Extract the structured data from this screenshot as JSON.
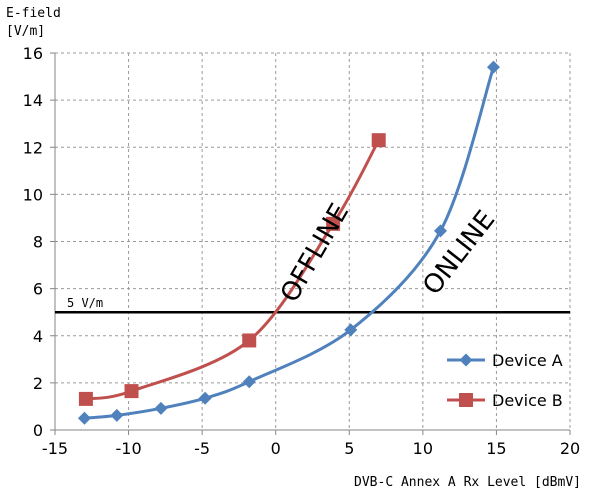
{
  "chart_data": {
    "type": "line",
    "title": "",
    "ylabel_line1": "E-field",
    "ylabel_line2": "[V/m]",
    "xlabel": "DVB-C Annex A Rx Level [dBmV]",
    "xlim": [
      -15,
      20
    ],
    "ylim": [
      0,
      16
    ],
    "xticks": [
      -15,
      -10,
      -5,
      0,
      5,
      10,
      15,
      20
    ],
    "yticks": [
      0,
      2,
      4,
      6,
      8,
      10,
      12,
      14,
      16
    ],
    "grid": "dashed vertical and horizontal",
    "legend_position": "bottom-right",
    "series": [
      {
        "name": "Device A",
        "marker": "diamond",
        "color": "#4f81bd",
        "x": [
          -13,
          -10.8,
          -7.8,
          -4.8,
          -1.8,
          5.1,
          11.2,
          14.8
        ],
        "y": [
          0.5,
          0.62,
          0.92,
          1.35,
          2.05,
          4.25,
          8.45,
          15.4
        ]
      },
      {
        "name": "Device B",
        "marker": "square",
        "color": "#c0504d",
        "x": [
          -12.9,
          -9.8,
          -1.8,
          3.9,
          7
        ],
        "y": [
          1.32,
          1.65,
          3.8,
          8.75,
          12.3
        ]
      }
    ],
    "threshold": {
      "value": 5,
      "label": "5 V/m",
      "color": "#000000"
    },
    "annotations": [
      {
        "text": "OFFLINE",
        "x": 2.7,
        "y": 7.5,
        "rotation": -60
      },
      {
        "text": "ONLINE",
        "x": 12.5,
        "y": 7.5,
        "rotation": -52
      }
    ]
  }
}
